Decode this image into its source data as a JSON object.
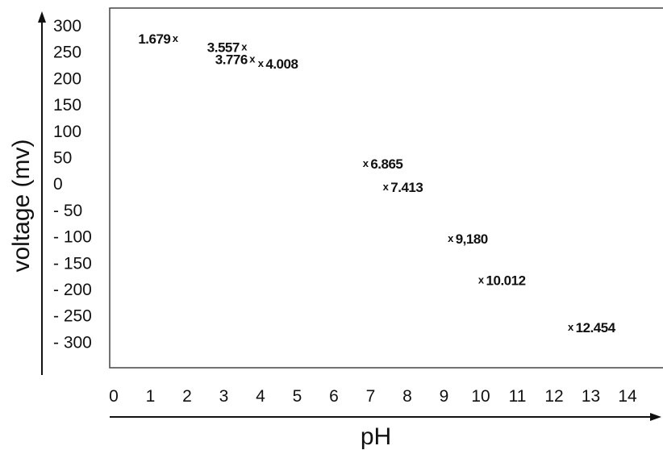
{
  "chart_data": {
    "type": "scatter",
    "title": "",
    "xlabel": "pH",
    "ylabel": "voltage (mv)",
    "xlim": [
      0,
      14
    ],
    "ylim": [
      -300,
      300
    ],
    "x_ticks": [
      "0",
      "1",
      "2",
      "3",
      "4",
      "5",
      "6",
      "7",
      "8",
      "9",
      "10",
      "11",
      "12",
      "13",
      "14"
    ],
    "y_ticks": [
      "300",
      "250",
      "200",
      "150",
      "100",
      "50",
      "0",
      "- 50",
      "- 100",
      "- 150",
      "- 200",
      "- 250",
      "- 300"
    ],
    "grid": false,
    "marker": "x",
    "points": [
      {
        "x": 1.679,
        "y": 255,
        "label": "1.679",
        "label_side": "left"
      },
      {
        "x": 3.557,
        "y": 240,
        "label": "3.557",
        "label_side": "left"
      },
      {
        "x": 3.776,
        "y": 218,
        "label": "3.776",
        "label_side": "left"
      },
      {
        "x": 4.008,
        "y": 210,
        "label": "4.008",
        "label_side": "right"
      },
      {
        "x": 6.865,
        "y": 30,
        "label": "6.865",
        "label_side": "right"
      },
      {
        "x": 7.413,
        "y": -12,
        "label": "7.413",
        "label_side": "right"
      },
      {
        "x": 9.18,
        "y": -105,
        "label": "9,180",
        "label_side": "right"
      },
      {
        "x": 10.012,
        "y": -180,
        "label": "10.012",
        "label_side": "right"
      },
      {
        "x": 12.454,
        "y": -265,
        "label": "12.454",
        "label_side": "right"
      }
    ]
  }
}
